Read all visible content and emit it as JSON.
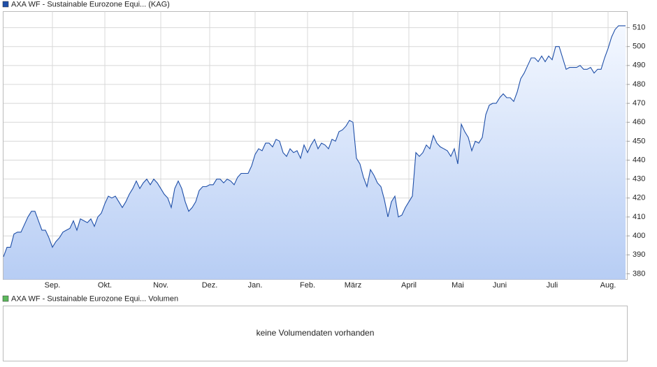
{
  "chart_data": {
    "type": "area",
    "categories": [
      null,
      null,
      null,
      null,
      null,
      null,
      null,
      null,
      null,
      null,
      null,
      null,
      null,
      null,
      "Sep.",
      null,
      null,
      null,
      null,
      null,
      null,
      null,
      null,
      null,
      null,
      null,
      null,
      null,
      null,
      "Okt.",
      null,
      null,
      null,
      null,
      null,
      null,
      null,
      null,
      null,
      null,
      null,
      null,
      null,
      null,
      null,
      "Nov.",
      null,
      null,
      null,
      null,
      null,
      null,
      null,
      null,
      null,
      null,
      null,
      null,
      null,
      "Dez.",
      null,
      null,
      null,
      null,
      null,
      null,
      null,
      null,
      null,
      null,
      null,
      null,
      "Jan.",
      null,
      null,
      null,
      null,
      null,
      null,
      null,
      null,
      null,
      null,
      null,
      null,
      null,
      null,
      "Feb.",
      null,
      null,
      null,
      null,
      null,
      null,
      null,
      null,
      null,
      null,
      null,
      null,
      "März",
      null,
      null,
      null,
      null,
      null,
      null,
      null,
      null,
      null,
      null,
      null,
      null,
      null,
      null,
      null,
      "April",
      null,
      null,
      null,
      null,
      null,
      null,
      null,
      null,
      null,
      null,
      null,
      null,
      null,
      "Mai",
      null,
      null,
      null,
      null,
      null,
      null,
      null,
      null,
      null,
      null,
      null,
      "Juni",
      null,
      null,
      null,
      null,
      null,
      null,
      null,
      null,
      null,
      null,
      null,
      null,
      null,
      null,
      "Juli",
      null,
      null,
      null,
      null,
      null,
      null,
      null,
      null,
      null,
      null,
      null,
      null,
      null,
      null,
      null,
      "Aug.",
      null,
      null,
      null,
      null,
      null
    ],
    "series": [
      {
        "name": "AXA WF - Sustainable Eurozone Equi... (KAG)",
        "color": "#1f4fa8",
        "values": [
          389,
          394,
          394,
          401,
          402,
          402,
          406,
          410,
          413,
          413,
          408,
          403,
          403,
          399,
          394,
          397,
          399,
          402,
          403,
          404,
          408,
          403,
          409,
          408,
          407,
          409,
          405,
          410,
          412,
          417,
          421,
          420,
          421,
          418,
          415,
          418,
          422,
          425,
          429,
          425,
          428,
          430,
          427,
          430,
          428,
          425,
          422,
          420,
          415,
          425,
          429,
          425,
          418,
          413,
          415,
          418,
          424,
          426,
          426,
          427,
          427,
          430,
          430,
          428,
          430,
          429,
          427,
          431,
          433,
          433,
          433,
          437,
          443,
          446,
          445,
          449,
          449,
          447,
          451,
          450,
          444,
          442,
          446,
          444,
          445,
          441,
          448,
          444,
          448,
          451,
          446,
          449,
          448,
          446,
          451,
          450,
          455,
          456,
          458,
          461,
          460,
          441,
          438,
          431,
          426,
          435,
          432,
          428,
          426,
          419,
          410,
          418,
          421,
          410,
          411,
          415,
          418,
          421,
          444,
          442,
          444,
          448,
          446,
          453,
          449,
          447,
          446,
          445,
          442,
          446,
          438,
          459,
          455,
          452,
          445,
          450,
          449,
          452,
          464,
          469,
          470,
          470,
          473,
          475,
          473,
          473,
          471,
          476,
          483,
          486,
          490,
          494,
          494,
          492,
          495,
          492,
          495,
          493,
          500,
          500,
          494,
          488,
          489,
          489,
          489,
          490,
          488,
          488,
          489,
          486,
          488,
          488,
          494,
          499,
          505,
          509,
          511,
          511,
          511
        ]
      }
    ],
    "ylim": [
      377,
      518.5
    ],
    "yticks": [
      380,
      390,
      400,
      410,
      420,
      430,
      440,
      450,
      460,
      470,
      480,
      490,
      500,
      510
    ],
    "grid": true
  },
  "volume_panel": {
    "legend": "AXA WF - Sustainable Eurozone Equi... Volumen",
    "color": "#5cb85c",
    "message": "keine Volumendaten vorhanden"
  }
}
